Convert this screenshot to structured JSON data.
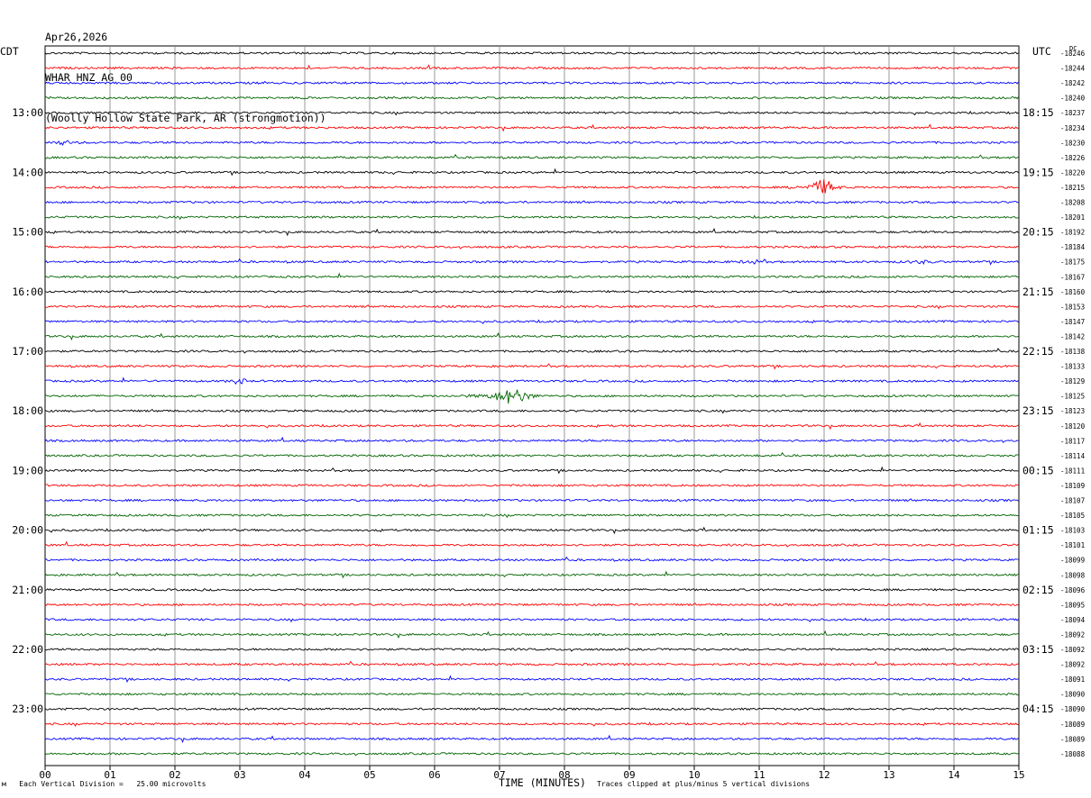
{
  "header": {
    "date": "Apr26,2026",
    "station": "WHAR HNZ AG 00",
    "location": "(Woolly Hollow State Park, AR (strongmotion))"
  },
  "axis": {
    "left_timezone": "CDT",
    "right_timezone": "UTC",
    "dc_label": "DC",
    "xlabel": "TIME (MINUTES)",
    "x_ticks": [
      "00",
      "01",
      "02",
      "03",
      "04",
      "05",
      "06",
      "07",
      "08",
      "09",
      "10",
      "11",
      "12",
      "13",
      "14",
      "15"
    ]
  },
  "footer": {
    "left_mark": "м",
    "scale_note": "Each Vertical Division =   25.00 microvolts",
    "clip_note": "Traces clipped at plus/minus 5 vertical divisions"
  },
  "colors": {
    "trace_cycle": [
      "#000000",
      "#ff0000",
      "#0000ff",
      "#006400"
    ],
    "grid": "#808080"
  },
  "chart_data": {
    "type": "helicorder",
    "minutes_per_line": 15,
    "line_count": 48,
    "x_range": [
      0,
      15
    ],
    "left_hour_labels": [
      {
        "line": 4,
        "label": "13:00"
      },
      {
        "line": 8,
        "label": "14:00"
      },
      {
        "line": 12,
        "label": "15:00"
      },
      {
        "line": 16,
        "label": "16:00"
      },
      {
        "line": 20,
        "label": "17:00"
      },
      {
        "line": 24,
        "label": "18:00"
      },
      {
        "line": 28,
        "label": "19:00"
      },
      {
        "line": 32,
        "label": "20:00"
      },
      {
        "line": 36,
        "label": "21:00"
      },
      {
        "line": 40,
        "label": "22:00"
      },
      {
        "line": 44,
        "label": "23:00"
      }
    ],
    "right_hour_labels": [
      {
        "line": 4,
        "label": "18:15"
      },
      {
        "line": 8,
        "label": "19:15"
      },
      {
        "line": 12,
        "label": "20:15"
      },
      {
        "line": 16,
        "label": "21:15"
      },
      {
        "line": 20,
        "label": "22:15"
      },
      {
        "line": 24,
        "label": "23:15"
      },
      {
        "line": 28,
        "label": "00:15"
      },
      {
        "line": 32,
        "label": "01:15"
      },
      {
        "line": 36,
        "label": "02:15"
      },
      {
        "line": 40,
        "label": "03:15"
      },
      {
        "line": 44,
        "label": "04:15"
      }
    ],
    "dc_values": [
      "-18246",
      "-18244",
      "-18242",
      "-18240",
      "-18237",
      "-18234",
      "-18230",
      "-18226",
      "-18220",
      "-18215",
      "-18208",
      "-18201",
      "-18192",
      "-18184",
      "-18175",
      "-18167",
      "-18160",
      "-18153",
      "-18147",
      "-18142",
      "-18138",
      "-18133",
      "-18129",
      "-18125",
      "-18123",
      "-18120",
      "-18117",
      "-18114",
      "-18111",
      "-18109",
      "-18107",
      "-18105",
      "-18103",
      "-18101",
      "-18099",
      "-18098",
      "-18096",
      "-18095",
      "-18094",
      "-18092",
      "-18092",
      "-18092",
      "-18091",
      "-18090",
      "-18090",
      "-18089",
      "-18089",
      "-18088"
    ],
    "events": [
      {
        "line": 6,
        "minute": 0.3,
        "amplitude": 1.5,
        "duration": 0.3
      },
      {
        "line": 9,
        "minute": 12.0,
        "amplitude": 7,
        "duration": 0.35
      },
      {
        "line": 22,
        "minute": 3.0,
        "amplitude": 3.5,
        "duration": 0.15
      },
      {
        "line": 23,
        "minute": 7.2,
        "amplitude": 7,
        "duration": 0.5
      },
      {
        "line": 14,
        "minute": 10.9,
        "amplitude": 1.5,
        "duration": 0.3
      },
      {
        "line": 14,
        "minute": 13.5,
        "amplitude": 1.2,
        "duration": 0.3
      }
    ]
  }
}
